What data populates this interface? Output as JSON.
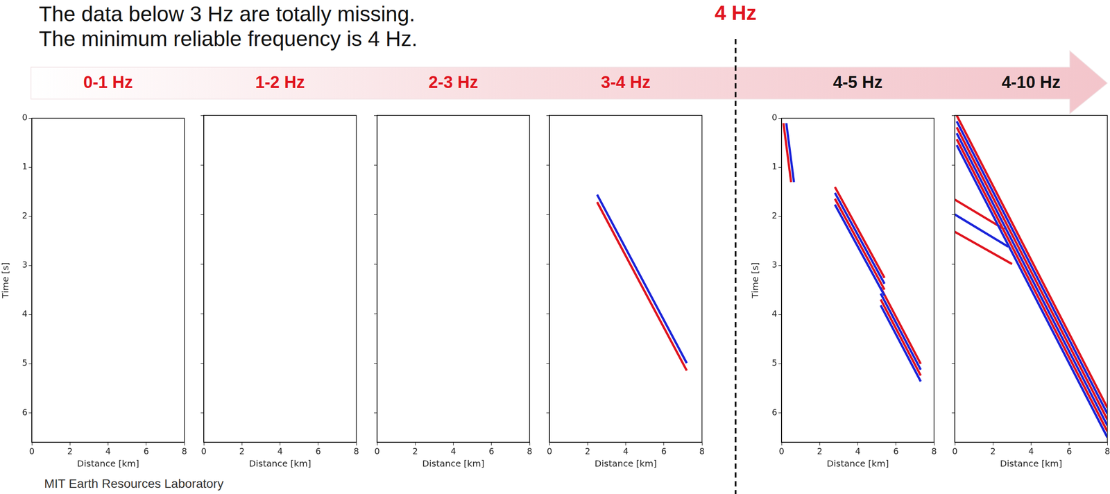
{
  "header": {
    "lines": [
      "The data below 3 Hz are totally missing.",
      "The minimum reliable frequency is 4 Hz."
    ],
    "marker": {
      "label": "4 Hz",
      "color": "#e0141e"
    }
  },
  "band_labels": [
    {
      "text": "0-1 Hz",
      "color": "#e0141e"
    },
    {
      "text": "1-2 Hz",
      "color": "#e0141e"
    },
    {
      "text": "2-3 Hz",
      "color": "#e0141e"
    },
    {
      "text": "3-4 Hz",
      "color": "#e0141e"
    },
    {
      "text": "4-5 Hz",
      "color": "#111111"
    },
    {
      "text": "4-10 Hz",
      "color": "#111111"
    }
  ],
  "footer": "MIT Earth Resources Laboratory",
  "chart_data": [
    {
      "type": "line",
      "xlabel": "Distance [km]",
      "ylabel": "Time [s]",
      "xlim": [
        0,
        8
      ],
      "xticks": [
        0,
        2,
        4,
        6,
        8
      ],
      "ylim": [
        6.6,
        0
      ],
      "yticks": [
        0,
        1,
        2,
        3,
        4,
        5,
        6
      ],
      "series": []
    },
    {
      "type": "line",
      "xlabel": "Distance [km]",
      "tick_labels": "x",
      "xlim": [
        0,
        8
      ],
      "xticks": [
        0,
        2,
        4,
        6,
        8
      ],
      "ylim": [
        6.6,
        0
      ],
      "yticks": [
        0,
        1,
        2,
        3,
        4,
        5,
        6
      ],
      "series": []
    },
    {
      "type": "line",
      "xlabel": "Distance [km]",
      "tick_labels": "x",
      "xlim": [
        0,
        8
      ],
      "xticks": [
        0,
        2,
        4,
        6,
        8
      ],
      "ylim": [
        6.6,
        0
      ],
      "yticks": [
        0,
        1,
        2,
        3,
        4,
        5,
        6
      ],
      "series": []
    },
    {
      "type": "line",
      "xlabel": "Distance [km]",
      "tick_labels": "x",
      "xlim": [
        0,
        8
      ],
      "xticks": [
        0,
        2,
        4,
        6,
        8
      ],
      "ylim": [
        6.6,
        0
      ],
      "yticks": [
        0,
        1,
        2,
        3,
        4,
        5,
        6
      ],
      "series": [
        {
          "color": "#1a24d9",
          "x": [
            2.5,
            7.2
          ],
          "values": [
            1.6,
            5.0
          ]
        },
        {
          "color": "#e0141e",
          "x": [
            2.5,
            7.2
          ],
          "values": [
            1.75,
            5.15
          ]
        }
      ]
    },
    {
      "type": "line",
      "xlabel": "Distance [km]",
      "ylabel": "Time [s]",
      "xlim": [
        0,
        8
      ],
      "xticks": [
        0,
        2,
        4,
        6,
        8
      ],
      "ylim": [
        6.6,
        0
      ],
      "yticks": [
        0,
        1,
        2,
        3,
        4,
        5,
        6
      ],
      "series": [
        {
          "color": "#e0141e",
          "x": [
            0.1,
            0.5
          ],
          "values": [
            0.1,
            1.3
          ]
        },
        {
          "color": "#1a24d9",
          "x": [
            0.25,
            0.65
          ],
          "values": [
            0.1,
            1.3
          ]
        },
        {
          "color": "#e0141e",
          "x": [
            2.8,
            5.4
          ],
          "values": [
            1.4,
            3.25
          ]
        },
        {
          "color": "#1a24d9",
          "x": [
            2.8,
            5.4
          ],
          "values": [
            1.52,
            3.37
          ]
        },
        {
          "color": "#e0141e",
          "x": [
            2.8,
            5.4
          ],
          "values": [
            1.64,
            3.49
          ]
        },
        {
          "color": "#1a24d9",
          "x": [
            2.8,
            5.4
          ],
          "values": [
            1.76,
            3.61
          ]
        },
        {
          "color": "#e0141e",
          "x": [
            5.2,
            7.3
          ],
          "values": [
            3.45,
            5.0
          ]
        },
        {
          "color": "#1a24d9",
          "x": [
            5.2,
            7.3
          ],
          "values": [
            3.57,
            5.12
          ]
        },
        {
          "color": "#e0141e",
          "x": [
            5.2,
            7.3
          ],
          "values": [
            3.69,
            5.24
          ]
        },
        {
          "color": "#1a24d9",
          "x": [
            5.2,
            7.3
          ],
          "values": [
            3.81,
            5.36
          ]
        }
      ]
    },
    {
      "type": "line",
      "xlabel": "Distance [km]",
      "tick_labels": "x",
      "xlim": [
        0,
        8
      ],
      "xticks": [
        0,
        2,
        4,
        6,
        8
      ],
      "ylim": [
        6.6,
        0
      ],
      "yticks": [
        0,
        1,
        2,
        3,
        4,
        5,
        6
      ],
      "series": [
        {
          "color": "#e0141e",
          "x": [
            0.1,
            8.0
          ],
          "values": [
            0.0,
            5.9
          ]
        },
        {
          "color": "#1a24d9",
          "x": [
            0.1,
            8.0
          ],
          "values": [
            0.12,
            6.02
          ]
        },
        {
          "color": "#e0141e",
          "x": [
            0.1,
            8.0
          ],
          "values": [
            0.24,
            6.14
          ]
        },
        {
          "color": "#1a24d9",
          "x": [
            0.1,
            8.0
          ],
          "values": [
            0.36,
            6.26
          ]
        },
        {
          "color": "#e0141e",
          "x": [
            0.1,
            8.0
          ],
          "values": [
            0.48,
            6.38
          ]
        },
        {
          "color": "#1a24d9",
          "x": [
            0.1,
            8.0
          ],
          "values": [
            0.6,
            6.5
          ]
        },
        {
          "color": "#e0141e",
          "x": [
            0.0,
            2.6
          ],
          "values": [
            1.7,
            2.3
          ]
        },
        {
          "color": "#1a24d9",
          "x": [
            0.0,
            2.8
          ],
          "values": [
            2.0,
            2.65
          ]
        },
        {
          "color": "#e0141e",
          "x": [
            0.0,
            3.0
          ],
          "values": [
            2.35,
            3.0
          ]
        }
      ]
    }
  ]
}
